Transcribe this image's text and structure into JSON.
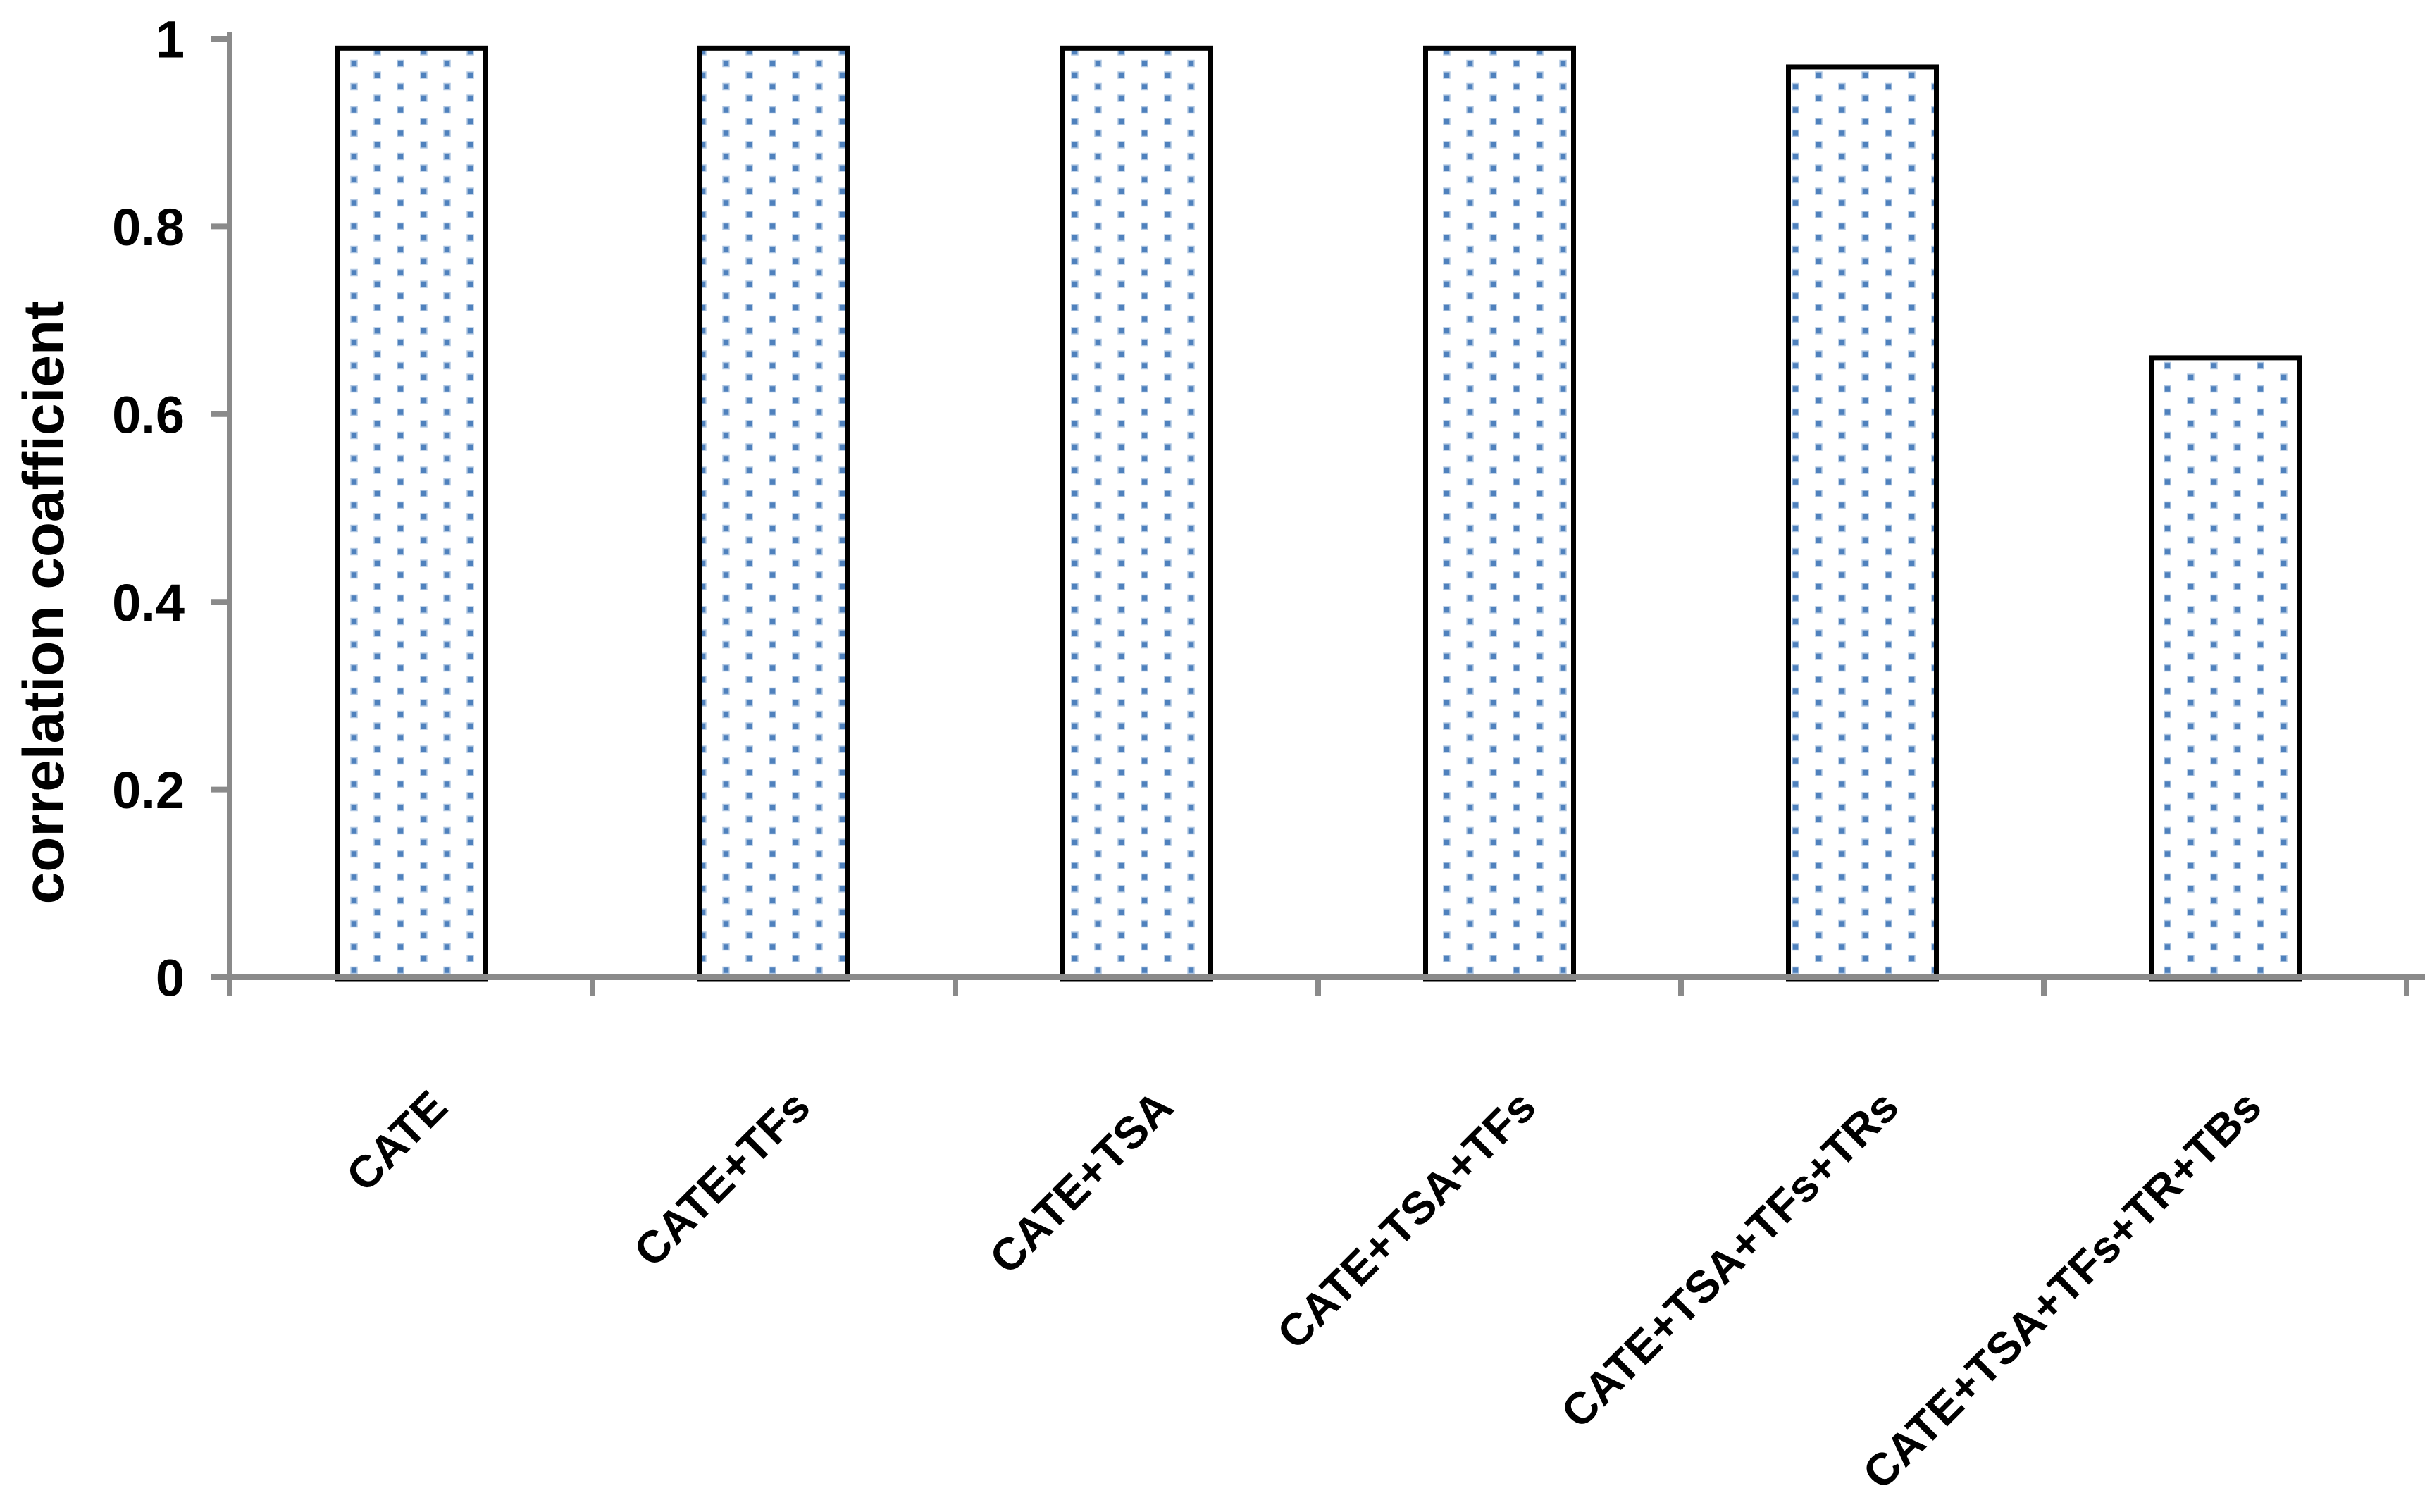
{
  "figure": {
    "background_color": "#ffffff"
  },
  "chart_data": {
    "type": "bar",
    "title": "",
    "categories": [
      "CATE",
      "CATE+TFs",
      "CATE+TSA",
      "CATE+TSA+TFs",
      "CATE+TSA+TFs+TRs",
      "CATE+TSA+TFs+TR+TBs"
    ],
    "values": [
      0.99,
      0.99,
      0.99,
      0.99,
      0.97,
      0.66
    ],
    "xlabel": "",
    "ylabel": "correlation coafficient",
    "ylim": [
      0,
      1
    ],
    "yticks": [
      0,
      0.2,
      0.4,
      0.6,
      0.8,
      1
    ],
    "ytick_labels": [
      "0",
      "0.2",
      "0.4",
      "0.6",
      "0.8",
      "1"
    ],
    "grid": false,
    "legend": "none",
    "x_label_rotation_deg": -45,
    "style": {
      "bar_fill": "#ffffff",
      "bar_pattern": "blue-square-dots",
      "dot_color": "#4f81bd",
      "dot_halo_color": "#b0c7e2",
      "bar_border_color": "#000000",
      "axis_color": "#8a8a8a",
      "text_color": "#000000"
    }
  }
}
